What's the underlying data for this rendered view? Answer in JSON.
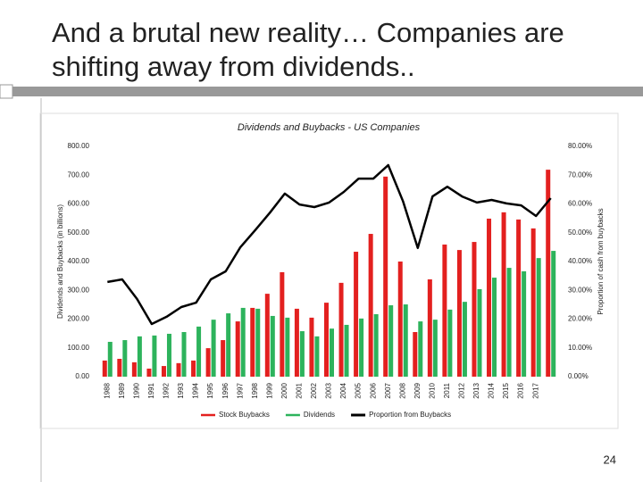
{
  "slide": {
    "title": "And a brutal new reality… Companies are shifting away from dividends..",
    "page_number": "24"
  },
  "chart_data": {
    "type": "bar_line",
    "title": "Dividends and Buybacks - US Companies",
    "y_label": "Dividends and Buybacks (in billions)",
    "y2_label": "Proportion of cash from buybacks",
    "categories": [
      "1988",
      "1989",
      "1990",
      "1991",
      "1992",
      "1993",
      "1994",
      "1995",
      "1996",
      "1997",
      "1998",
      "1999",
      "2000",
      "2001",
      "2002",
      "2003",
      "2004",
      "2005",
      "2006",
      "2007",
      "2008",
      "2009",
      "2010",
      "2011",
      "2012",
      "2013",
      "2014",
      "2015",
      "2016",
      "2017",
      null
    ],
    "series": [
      {
        "name": "Stock Buybacks",
        "color": "#e3201f",
        "kind": "bar",
        "values": [
          56,
          62,
          50,
          28,
          37,
          47,
          56,
          99,
          127,
          192,
          239,
          288,
          363,
          236,
          205,
          257,
          326,
          434,
          496,
          695,
          400,
          155,
          338,
          459,
          440,
          468,
          549,
          571,
          546,
          515,
          719
        ]
      },
      {
        "name": "Dividends",
        "color": "#2db35c",
        "kind": "bar",
        "values": [
          121,
          127,
          140,
          143,
          149,
          155,
          174,
          198,
          220,
          239,
          236,
          211,
          205,
          158,
          140,
          167,
          180,
          202,
          217,
          248,
          251,
          192,
          198,
          233,
          260,
          304,
          344,
          378,
          366,
          412,
          437
        ]
      },
      {
        "name": "Proportion from Buybacks",
        "color": "#000000",
        "kind": "line",
        "axis": "y2",
        "values": [
          32.9,
          33.8,
          27,
          18.3,
          20.8,
          24.2,
          25.7,
          33.8,
          36.6,
          45,
          50.9,
          57,
          63.6,
          59.8,
          58.9,
          60.5,
          64.2,
          68.8,
          68.8,
          73.5,
          61,
          44.7,
          62.6,
          66,
          62.6,
          60.5,
          61.4,
          60.2,
          59.5,
          55.8,
          62
        ]
      }
    ],
    "ylim": [
      0,
      800
    ],
    "yticks": [
      {
        "value": 0,
        "label": "0.00"
      },
      {
        "value": 100,
        "label": "100.00"
      },
      {
        "value": 200,
        "label": "200.00"
      },
      {
        "value": 300,
        "label": "300.00"
      },
      {
        "value": 400,
        "label": "400.00"
      },
      {
        "value": 500,
        "label": "500.00"
      },
      {
        "value": 600,
        "label": "600.00"
      },
      {
        "value": 700,
        "label": "700.00"
      },
      {
        "value": 800,
        "label": "800.00"
      }
    ],
    "y2lim": [
      0,
      80
    ],
    "y2ticks": [
      {
        "value": 0,
        "label": "0.00%"
      },
      {
        "value": 10,
        "label": "10.00%"
      },
      {
        "value": 20,
        "label": "20.00%"
      },
      {
        "value": 30,
        "label": "30.00%"
      },
      {
        "value": 40,
        "label": "40.00%"
      },
      {
        "value": 50,
        "label": "50.00%"
      },
      {
        "value": 60,
        "label": "60.00%"
      },
      {
        "value": 70,
        "label": "70.00%"
      },
      {
        "value": 80,
        "label": "80.00%"
      }
    ],
    "legend": "bottom"
  }
}
